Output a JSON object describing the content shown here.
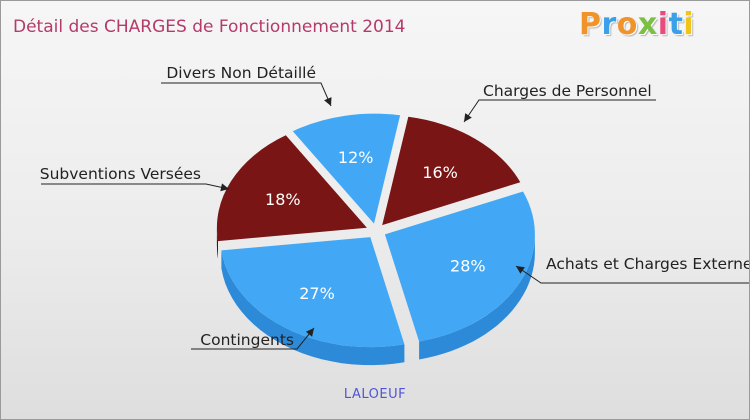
{
  "title": "Détail des CHARGES de Fonctionnement 2014",
  "logo": {
    "letters": [
      "P",
      "r",
      "o",
      "x",
      "i",
      "t",
      "i"
    ],
    "colors": [
      "#f0932b",
      "#3aa0e8",
      "#f0932b",
      "#7ac043",
      "#e84c7d",
      "#3aa0e8",
      "#f0c419"
    ]
  },
  "footer": "LALOEUF",
  "colors": {
    "blue": "#42a8f5",
    "blue_side": "#2c8ad9",
    "red": "#7a1515",
    "red_side": "#5a0c0c",
    "pct_on_blue": "#ffffff",
    "pct_on_red": "#ffffff"
  },
  "chart_data": {
    "type": "pie",
    "title": "Détail des CHARGES de Fonctionnement 2014",
    "subtitle": "LALOEUF",
    "slices": [
      {
        "label": "Charges de Personnel",
        "value": 16,
        "pct_label": "16%",
        "color": "red"
      },
      {
        "label": "Achats et Charges Externes",
        "value": 28,
        "pct_label": "28%",
        "color": "blue"
      },
      {
        "label": "Contingents",
        "value": 27,
        "pct_label": "27%",
        "color": "blue"
      },
      {
        "label": "Subventions Versées",
        "value": 18,
        "pct_label": "18%",
        "color": "red"
      },
      {
        "label": "Divers Non Détaillé",
        "value": 12,
        "pct_label": "12%",
        "color": "blue"
      }
    ]
  }
}
